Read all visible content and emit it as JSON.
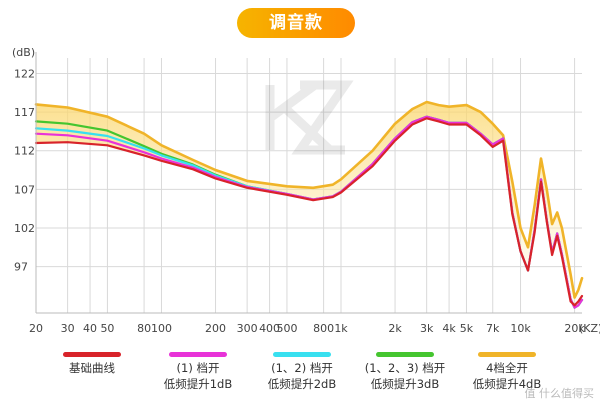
{
  "header": {
    "title": "调音款"
  },
  "chart_data": {
    "type": "line",
    "xscale": "log",
    "ylabel": "(dB)",
    "xlabel": "(KZ)",
    "ylim": [
      91,
      124
    ],
    "xlim": [
      20,
      22000
    ],
    "yticks": [
      97,
      102,
      107,
      112,
      117,
      122
    ],
    "xticks": [
      {
        "v": 20,
        "label": "20"
      },
      {
        "v": 30,
        "label": "30"
      },
      {
        "v": 40,
        "label": "40"
      },
      {
        "v": 50,
        "label": "50"
      },
      {
        "v": 80,
        "label": "80"
      },
      {
        "v": 100,
        "label": "100"
      },
      {
        "v": 200,
        "label": "200"
      },
      {
        "v": 300,
        "label": "300"
      },
      {
        "v": 400,
        "label": "400"
      },
      {
        "v": 500,
        "label": "500"
      },
      {
        "v": 800,
        "label": "800"
      },
      {
        "v": 1000,
        "label": "1k"
      },
      {
        "v": 2000,
        "label": "2k"
      },
      {
        "v": 3000,
        "label": "3k"
      },
      {
        "v": 4000,
        "label": "4k"
      },
      {
        "v": 5000,
        "label": "5k"
      },
      {
        "v": 7000,
        "label": "7k"
      },
      {
        "v": 10000,
        "label": "10k"
      },
      {
        "v": 20000,
        "label": "20k"
      }
    ],
    "grid": true,
    "series": [
      {
        "name": "4档全开",
        "name_line2": "低频提升4dB",
        "color": "#f0b429",
        "points": [
          [
            20,
            118
          ],
          [
            30,
            117.6
          ],
          [
            50,
            116.4
          ],
          [
            80,
            114.2
          ],
          [
            100,
            112.7
          ],
          [
            150,
            110.8
          ],
          [
            200,
            109.5
          ],
          [
            300,
            108.1
          ],
          [
            500,
            107.4
          ],
          [
            700,
            107.2
          ],
          [
            900,
            107.6
          ],
          [
            1000,
            108.3
          ],
          [
            1500,
            112
          ],
          [
            2000,
            115.5
          ],
          [
            2500,
            117.4
          ],
          [
            3000,
            118.3
          ],
          [
            3500,
            117.9
          ],
          [
            4000,
            117.7
          ],
          [
            5000,
            117.9
          ],
          [
            6000,
            117
          ],
          [
            7000,
            115.5
          ],
          [
            8000,
            114
          ],
          [
            9000,
            108
          ],
          [
            10000,
            102
          ],
          [
            11000,
            99.5
          ],
          [
            12000,
            105
          ],
          [
            13000,
            111
          ],
          [
            14000,
            107
          ],
          [
            15000,
            102.5
          ],
          [
            16000,
            104
          ],
          [
            17000,
            102
          ],
          [
            19000,
            96
          ],
          [
            20000,
            93
          ],
          [
            21000,
            94
          ],
          [
            22000,
            95.5
          ]
        ]
      },
      {
        "name": "(1、2、3) 档开",
        "name_line2": "低频提升3dB",
        "color": "#45c52f",
        "points": [
          [
            20,
            115.8
          ],
          [
            30,
            115.5
          ],
          [
            50,
            114.6
          ],
          [
            80,
            112.6
          ],
          [
            100,
            111.6
          ],
          [
            150,
            110.2
          ],
          [
            200,
            108.9
          ],
          [
            300,
            107.4
          ],
          [
            500,
            106.4
          ],
          [
            700,
            105.7
          ],
          [
            900,
            106.1
          ],
          [
            1000,
            106.7
          ],
          [
            1500,
            110.3
          ],
          [
            2000,
            113.6
          ],
          [
            2500,
            115.7
          ],
          [
            3000,
            116.4
          ],
          [
            3500,
            116
          ],
          [
            4000,
            115.6
          ],
          [
            5000,
            115.6
          ],
          [
            6000,
            114.2
          ],
          [
            7000,
            112.8
          ],
          [
            8000,
            113.6
          ],
          [
            9000,
            104
          ],
          [
            10000,
            99
          ],
          [
            11000,
            96.5
          ],
          [
            12000,
            101.8
          ],
          [
            13000,
            108.3
          ],
          [
            14000,
            103
          ],
          [
            15000,
            98.8
          ],
          [
            16000,
            101.3
          ],
          [
            17000,
            98.6
          ],
          [
            19000,
            92.8
          ],
          [
            20000,
            91.7
          ],
          [
            21000,
            92
          ],
          [
            22000,
            92.7
          ]
        ]
      },
      {
        "name": "(1、2) 档开",
        "name_line2": "低频提升2dB",
        "color": "#38e0f0",
        "points": [
          [
            20,
            114.9
          ],
          [
            30,
            114.6
          ],
          [
            50,
            113.9
          ],
          [
            80,
            112.3
          ],
          [
            100,
            111.4
          ],
          [
            150,
            110.1
          ],
          [
            200,
            108.8
          ],
          [
            300,
            107.4
          ],
          [
            500,
            106.4
          ],
          [
            700,
            105.7
          ],
          [
            900,
            106.1
          ],
          [
            1000,
            106.7
          ],
          [
            1500,
            110.3
          ],
          [
            2000,
            113.6
          ],
          [
            2500,
            115.7
          ],
          [
            3000,
            116.4
          ],
          [
            3500,
            116
          ],
          [
            4000,
            115.6
          ],
          [
            5000,
            115.6
          ],
          [
            6000,
            114.2
          ],
          [
            7000,
            112.8
          ],
          [
            8000,
            113.6
          ],
          [
            9000,
            104
          ],
          [
            10000,
            99
          ],
          [
            11000,
            96.5
          ],
          [
            12000,
            101.8
          ],
          [
            13000,
            108.3
          ],
          [
            14000,
            103
          ],
          [
            15000,
            98.8
          ],
          [
            16000,
            101.3
          ],
          [
            17000,
            98.6
          ],
          [
            19000,
            92.8
          ],
          [
            20000,
            91.7
          ],
          [
            21000,
            92
          ],
          [
            22000,
            92.7
          ]
        ]
      },
      {
        "name": "(1) 档开",
        "name_line2": "低频提升1dB",
        "color": "#e832d8",
        "points": [
          [
            20,
            114.2
          ],
          [
            30,
            114
          ],
          [
            50,
            113.3
          ],
          [
            80,
            111.8
          ],
          [
            100,
            111
          ],
          [
            150,
            109.8
          ],
          [
            200,
            108.6
          ],
          [
            300,
            107.3
          ],
          [
            500,
            106.4
          ],
          [
            700,
            105.7
          ],
          [
            900,
            106.1
          ],
          [
            1000,
            106.7
          ],
          [
            1500,
            110.3
          ],
          [
            2000,
            113.6
          ],
          [
            2500,
            115.7
          ],
          [
            3000,
            116.4
          ],
          [
            3500,
            116
          ],
          [
            4000,
            115.6
          ],
          [
            5000,
            115.6
          ],
          [
            6000,
            114.2
          ],
          [
            7000,
            112.8
          ],
          [
            8000,
            113.6
          ],
          [
            9000,
            104
          ],
          [
            10000,
            99
          ],
          [
            11000,
            96.5
          ],
          [
            12000,
            101.8
          ],
          [
            13000,
            108.3
          ],
          [
            14000,
            103
          ],
          [
            15000,
            98.8
          ],
          [
            16000,
            101.3
          ],
          [
            17000,
            98.6
          ],
          [
            19000,
            92.8
          ],
          [
            20000,
            91.7
          ],
          [
            21000,
            92
          ],
          [
            22000,
            92.7
          ]
        ]
      },
      {
        "name": "基础曲线",
        "name_line2": "",
        "color": "#d8232a",
        "points": [
          [
            20,
            113
          ],
          [
            30,
            113.1
          ],
          [
            50,
            112.7
          ],
          [
            80,
            111.4
          ],
          [
            100,
            110.7
          ],
          [
            150,
            109.6
          ],
          [
            200,
            108.4
          ],
          [
            300,
            107.2
          ],
          [
            500,
            106.3
          ],
          [
            700,
            105.6
          ],
          [
            900,
            106
          ],
          [
            1000,
            106.6
          ],
          [
            1500,
            110
          ],
          [
            2000,
            113.3
          ],
          [
            2500,
            115.4
          ],
          [
            3000,
            116.2
          ],
          [
            3500,
            115.8
          ],
          [
            4000,
            115.4
          ],
          [
            5000,
            115.4
          ],
          [
            6000,
            114
          ],
          [
            7000,
            112.5
          ],
          [
            8000,
            113.3
          ],
          [
            9000,
            103.8
          ],
          [
            10000,
            99
          ],
          [
            11000,
            96.5
          ],
          [
            12000,
            101.5
          ],
          [
            13000,
            108
          ],
          [
            14000,
            102.8
          ],
          [
            15000,
            98.5
          ],
          [
            16000,
            101
          ],
          [
            17000,
            98.3
          ],
          [
            19000,
            92.5
          ],
          [
            20000,
            92
          ],
          [
            21000,
            92.5
          ],
          [
            22000,
            93.2
          ]
        ]
      }
    ]
  },
  "legend": [
    {
      "line1": "基础曲线",
      "line2": "",
      "color": "#d8232a"
    },
    {
      "line1": "(1) 档开",
      "line2": "低频提升1dB",
      "color": "#e832d8"
    },
    {
      "line1": "(1、2) 档开",
      "line2": "低频提升2dB",
      "color": "#38e0f0"
    },
    {
      "line1": "(1、2、3) 档开",
      "line2": "低频提升3dB",
      "color": "#45c52f"
    },
    {
      "line1": "4档全开",
      "line2": "低频提升4dB",
      "color": "#f0b429"
    }
  ],
  "watermark": "值 什么值得买"
}
